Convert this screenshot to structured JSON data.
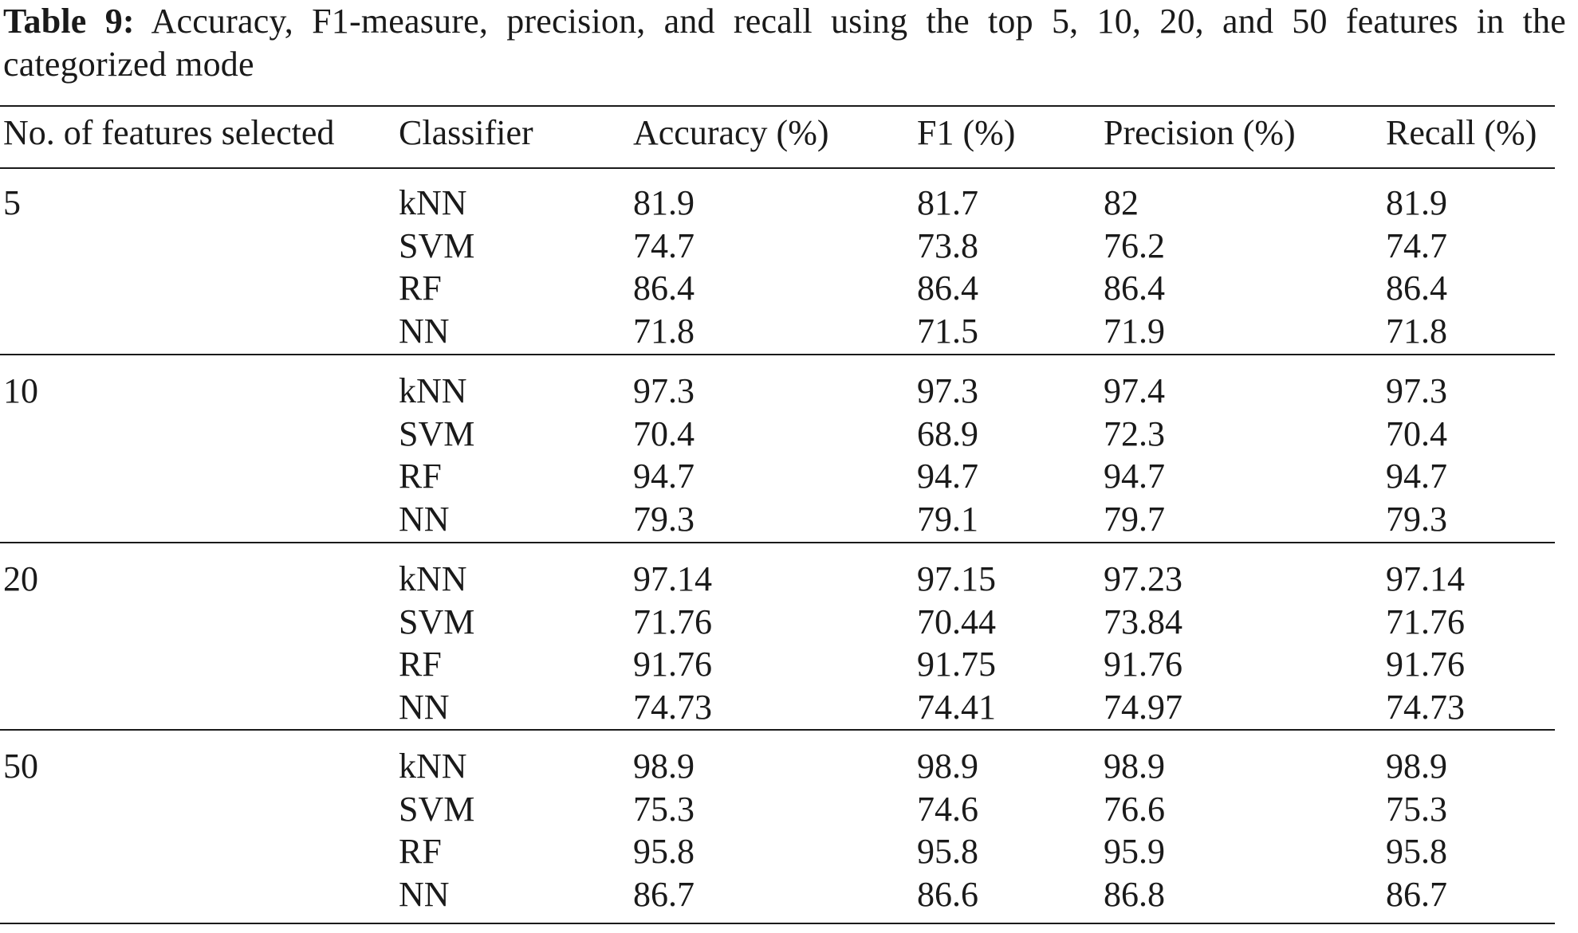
{
  "caption": {
    "label": "Table 9:",
    "text": "Accuracy, F1-measure, precision, and recall using the top 5, 10, 20, and 50 features in the categorized mode"
  },
  "table": {
    "headers": [
      "No. of features selected",
      "Classifier",
      "Accuracy (%)",
      "F1 (%)",
      "Precision (%)",
      "Recall (%)"
    ],
    "groups": [
      {
        "features": "5",
        "rows": [
          {
            "classifier": "kNN",
            "accuracy": "81.9",
            "f1": "81.7",
            "precision": "82",
            "recall": "81.9"
          },
          {
            "classifier": "SVM",
            "accuracy": "74.7",
            "f1": "73.8",
            "precision": "76.2",
            "recall": "74.7"
          },
          {
            "classifier": "RF",
            "accuracy": "86.4",
            "f1": "86.4",
            "precision": "86.4",
            "recall": "86.4"
          },
          {
            "classifier": "NN",
            "accuracy": "71.8",
            "f1": "71.5",
            "precision": "71.9",
            "recall": "71.8"
          }
        ]
      },
      {
        "features": "10",
        "rows": [
          {
            "classifier": "kNN",
            "accuracy": "97.3",
            "f1": "97.3",
            "precision": "97.4",
            "recall": "97.3"
          },
          {
            "classifier": "SVM",
            "accuracy": "70.4",
            "f1": "68.9",
            "precision": "72.3",
            "recall": "70.4"
          },
          {
            "classifier": "RF",
            "accuracy": "94.7",
            "f1": "94.7",
            "precision": "94.7",
            "recall": "94.7"
          },
          {
            "classifier": "NN",
            "accuracy": "79.3",
            "f1": "79.1",
            "precision": "79.7",
            "recall": "79.3"
          }
        ]
      },
      {
        "features": "20",
        "rows": [
          {
            "classifier": "kNN",
            "accuracy": "97.14",
            "f1": "97.15",
            "precision": "97.23",
            "recall": "97.14"
          },
          {
            "classifier": "SVM",
            "accuracy": "71.76",
            "f1": "70.44",
            "precision": "73.84",
            "recall": "71.76"
          },
          {
            "classifier": "RF",
            "accuracy": "91.76",
            "f1": "91.75",
            "precision": "91.76",
            "recall": "91.76"
          },
          {
            "classifier": "NN",
            "accuracy": "74.73",
            "f1": "74.41",
            "precision": "74.97",
            "recall": "74.73"
          }
        ]
      },
      {
        "features": "50",
        "rows": [
          {
            "classifier": "kNN",
            "accuracy": "98.9",
            "f1": "98.9",
            "precision": "98.9",
            "recall": "98.9"
          },
          {
            "classifier": "SVM",
            "accuracy": "75.3",
            "f1": "74.6",
            "precision": "76.6",
            "recall": "75.3"
          },
          {
            "classifier": "RF",
            "accuracy": "95.8",
            "f1": "95.8",
            "precision": "95.9",
            "recall": "95.8"
          },
          {
            "classifier": "NN",
            "accuracy": "86.7",
            "f1": "86.6",
            "precision": "86.8",
            "recall": "86.7"
          }
        ]
      }
    ]
  }
}
